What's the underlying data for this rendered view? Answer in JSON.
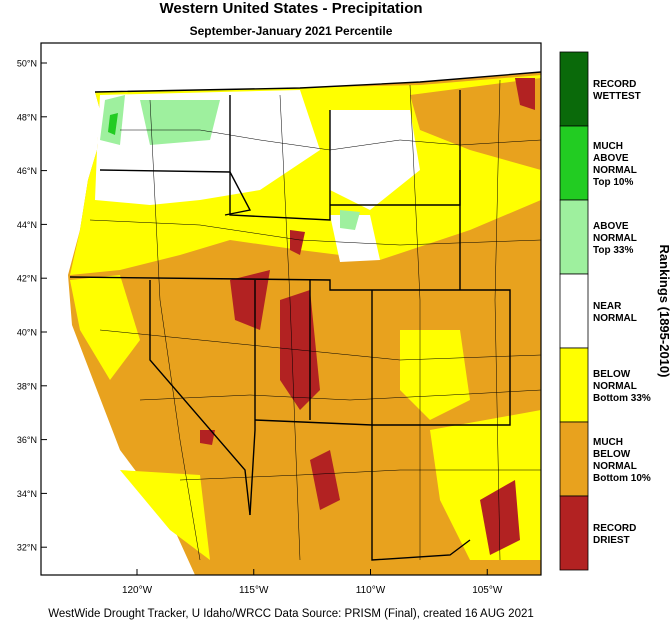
{
  "title": "Western United States - Precipitation",
  "subtitle": "September-January 2021 Percentile",
  "lat_ticks": [
    {
      "value": 50,
      "label": "50°N"
    },
    {
      "value": 48,
      "label": "48°N"
    },
    {
      "value": 46,
      "label": "46°N"
    },
    {
      "value": 44,
      "label": "44°N"
    },
    {
      "value": 42,
      "label": "42°N"
    },
    {
      "value": 40,
      "label": "40°N"
    },
    {
      "value": 38,
      "label": "38°N"
    },
    {
      "value": 36,
      "label": "36°N"
    },
    {
      "value": 34,
      "label": "34°N"
    },
    {
      "value": 32,
      "label": "32°N"
    }
  ],
  "lon_ticks": [
    {
      "value": -120,
      "label": "120°W"
    },
    {
      "value": -115,
      "label": "115°W"
    },
    {
      "value": -110,
      "label": "110°W"
    },
    {
      "value": -105,
      "label": "105°W"
    }
  ],
  "legend": {
    "title": "Rankings (1895-2010)",
    "items": [
      {
        "label": [
          "RECORD",
          "WETTEST"
        ],
        "color": "#0a6a0a"
      },
      {
        "label": [
          "MUCH",
          "ABOVE",
          "NORMAL",
          "Top 10%"
        ],
        "color": "#22cc22"
      },
      {
        "label": [
          "ABOVE",
          "NORMAL",
          "Top 33%"
        ],
        "color": "#9ef09e"
      },
      {
        "label": [
          "NEAR",
          "NORMAL"
        ],
        "color": "#ffffff"
      },
      {
        "label": [
          "BELOW",
          "NORMAL",
          "Bottom 33%"
        ],
        "color": "#ffff00"
      },
      {
        "label": [
          "MUCH",
          "BELOW",
          "NORMAL",
          "Bottom 10%"
        ],
        "color": "#e8a21e"
      },
      {
        "label": [
          "RECORD",
          "DRIEST"
        ],
        "color": "#b22222"
      }
    ]
  },
  "footer": "WestWide Drought Tracker, U Idaho/WRCC Data Source: PRISM (Final), created 16 AUG 2021"
}
